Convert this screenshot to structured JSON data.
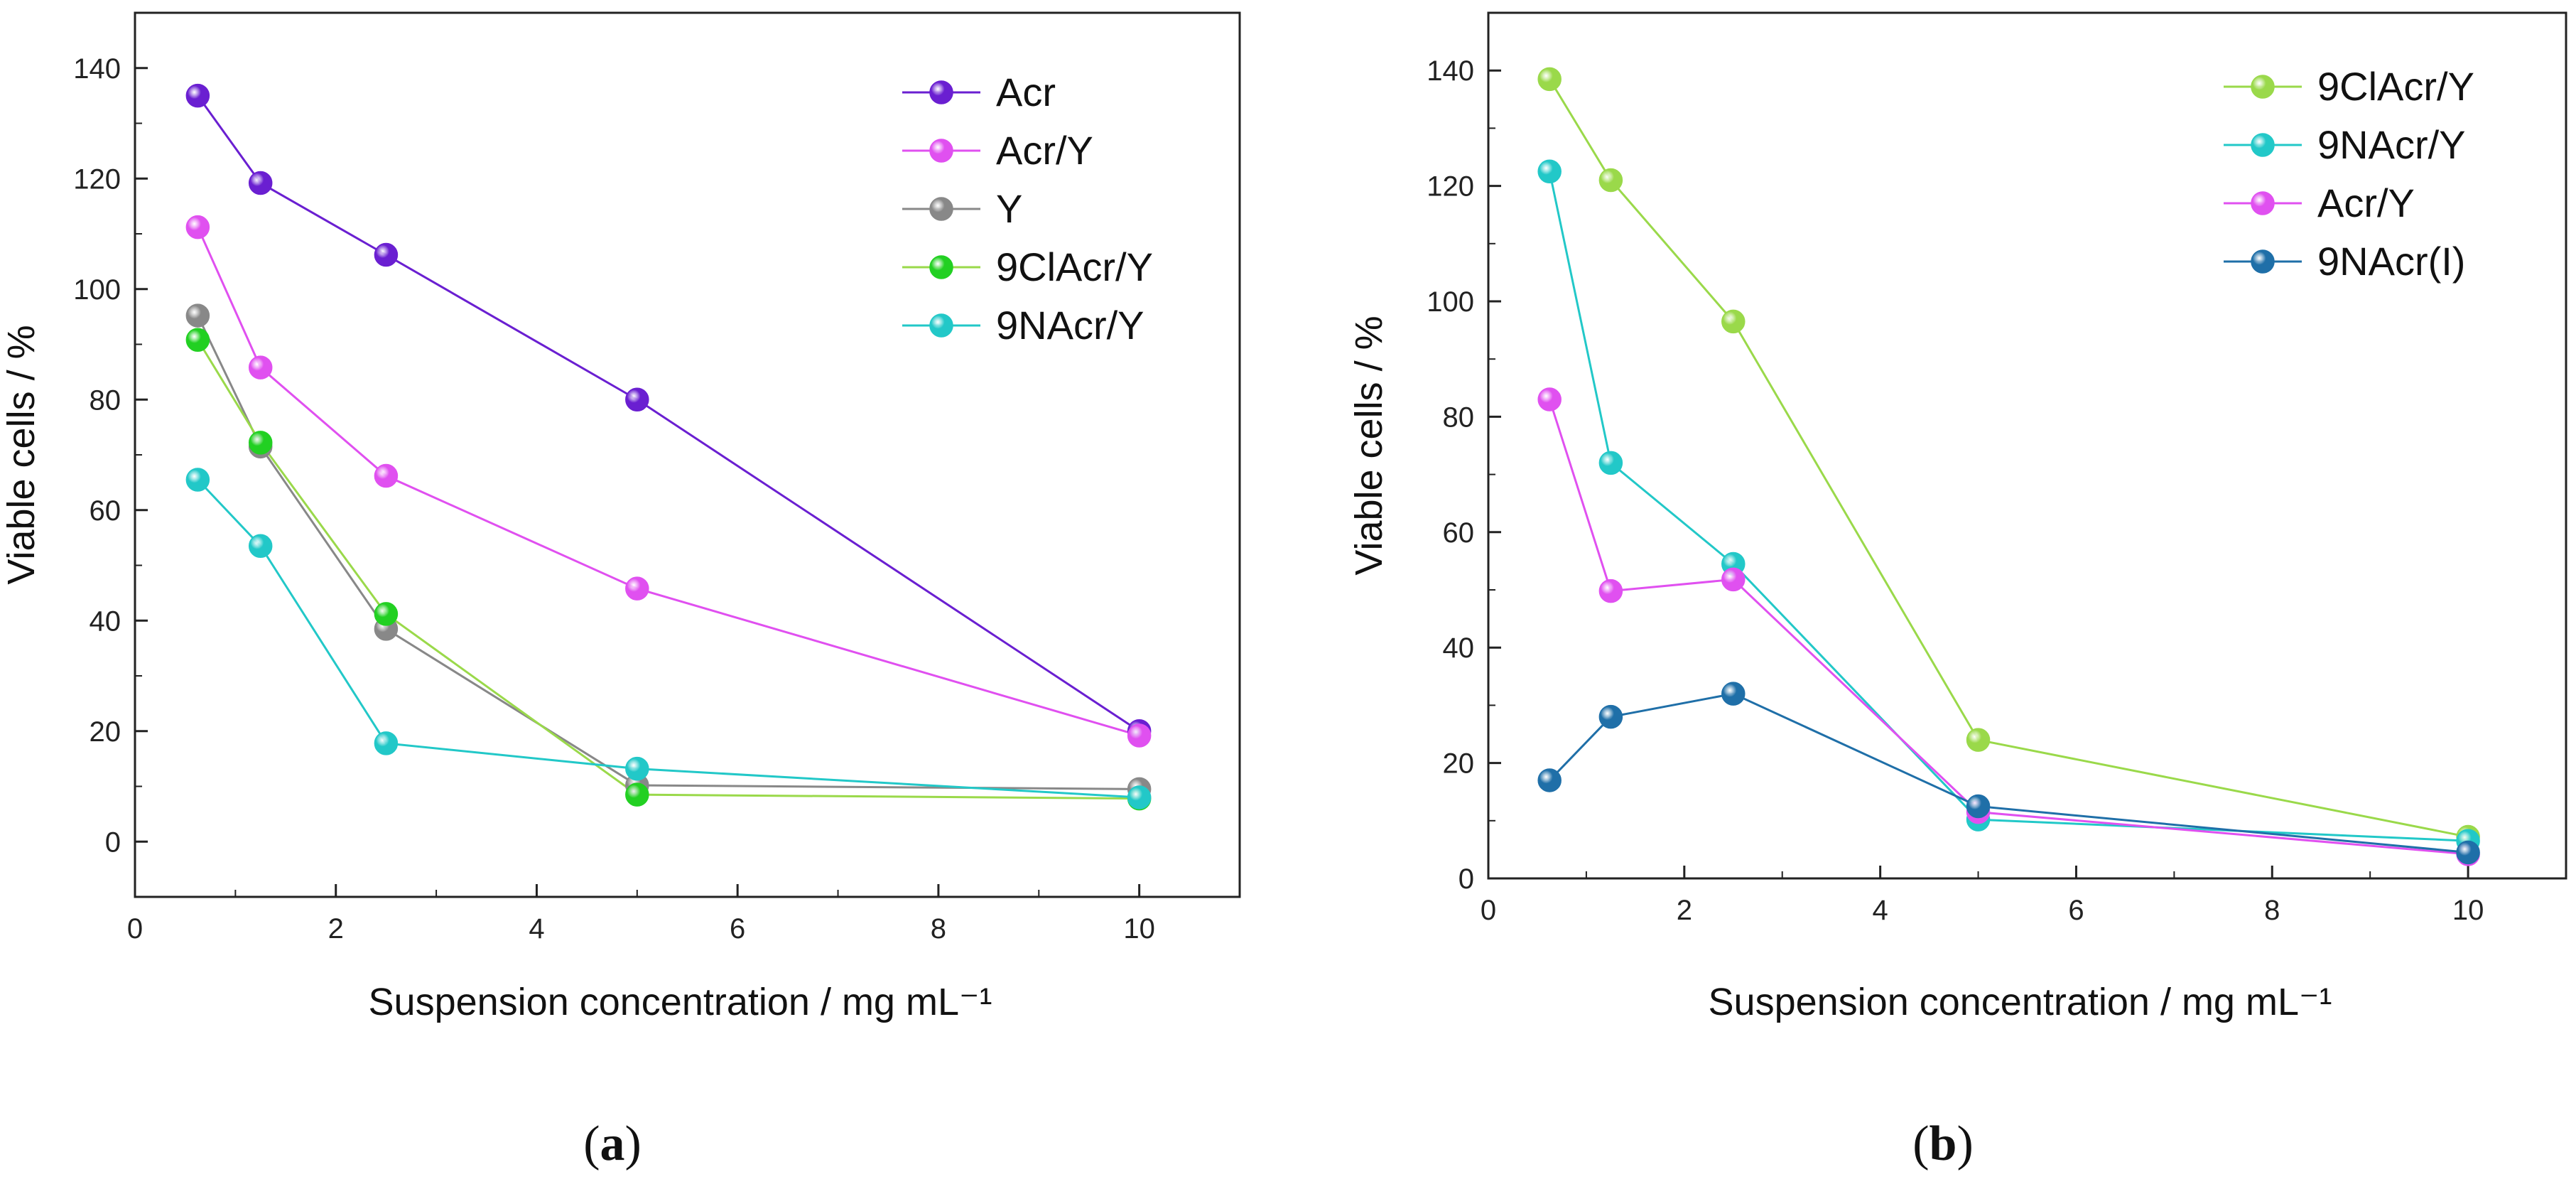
{
  "chart_data": [
    {
      "type": "line",
      "panel_label": "a",
      "xlabel": "Suspension concentration / mg mL⁻¹",
      "ylabel": "Viable cells / %",
      "xlim": [
        0,
        11
      ],
      "ylim": [
        -10,
        150
      ],
      "xticks": [
        0,
        2,
        4,
        6,
        8,
        10
      ],
      "yticks": [
        0,
        20,
        40,
        60,
        80,
        100,
        120,
        140
      ],
      "legend_position": "top-right",
      "x": [
        0.625,
        1.25,
        2.5,
        5,
        10
      ],
      "series": [
        {
          "name": "Acr",
          "color": "#6a1fd1",
          "values": [
            135,
            119.2,
            106.2,
            80,
            20
          ]
        },
        {
          "name": "Acr/Y",
          "color": "#e050f0",
          "values": [
            111.2,
            85.8,
            66.2,
            45.8,
            19.2
          ]
        },
        {
          "name": "Y",
          "color": "#888888",
          "values": [
            95.2,
            71.5,
            38.5,
            10.2,
            9.5
          ]
        },
        {
          "name": "9ClAcr/Y",
          "color": "#9ad94a",
          "marker_color": "#22d022",
          "values": [
            90.8,
            72.2,
            41.2,
            8.5,
            7.8
          ]
        },
        {
          "name": "9NAcr/Y",
          "color": "#22c8c8",
          "values": [
            65.5,
            53.5,
            17.8,
            13.2,
            8
          ]
        }
      ]
    },
    {
      "type": "line",
      "panel_label": "b",
      "xlabel": "Suspension concentration / mg mL⁻¹",
      "ylabel": "Viable cells / %",
      "xlim": [
        0,
        11
      ],
      "ylim": [
        0,
        150
      ],
      "xticks": [
        0,
        2,
        4,
        6,
        8,
        10
      ],
      "yticks": [
        0,
        20,
        40,
        60,
        80,
        100,
        120,
        140
      ],
      "legend_position": "top-right",
      "x": [
        0.625,
        1.25,
        2.5,
        5,
        10
      ],
      "series": [
        {
          "name": "9ClAcr/Y",
          "color": "#9ad94a",
          "values": [
            138.5,
            121,
            96.5,
            24,
            7.2
          ]
        },
        {
          "name": "9NAcr/Y",
          "color": "#22c8c8",
          "values": [
            122.5,
            72,
            54.5,
            10.2,
            6.5
          ]
        },
        {
          "name": "Acr/Y",
          "color": "#e050f0",
          "values": [
            83,
            49.8,
            51.8,
            11.5,
            4.2
          ]
        },
        {
          "name": "9NAcr(I)",
          "color": "#1f6fa8",
          "values": [
            17,
            28,
            32,
            12.5,
            4.5
          ]
        }
      ]
    }
  ]
}
